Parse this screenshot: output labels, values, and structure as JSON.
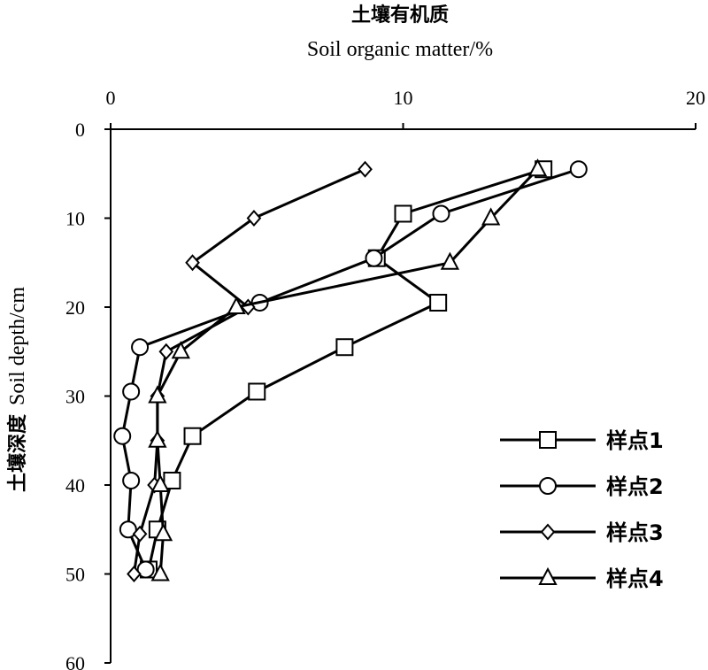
{
  "chart_data": {
    "type": "line",
    "title_cn": "土壤有机质",
    "xlabel": "Soil organic matter/%",
    "ylabel_cn": "土壤深度",
    "ylabel_en": "Soil depth/cm",
    "xlim": [
      0,
      20
    ],
    "ylim": [
      0,
      60
    ],
    "x_ticks": [
      0,
      10,
      20
    ],
    "y_ticks": [
      0,
      10,
      20,
      30,
      40,
      50,
      60
    ],
    "x_axis_position": "top",
    "y_axis_inverted": true,
    "grid": false,
    "legend_position": "bottom-right",
    "series": [
      {
        "name": "样点1",
        "marker": "square",
        "points": [
          {
            "x": 14.8,
            "y": 4.5
          },
          {
            "x": 10.0,
            "y": 9.5
          },
          {
            "x": 9.1,
            "y": 14.5
          },
          {
            "x": 11.2,
            "y": 19.5
          },
          {
            "x": 8.0,
            "y": 24.5
          },
          {
            "x": 5.0,
            "y": 29.5
          },
          {
            "x": 2.8,
            "y": 34.5
          },
          {
            "x": 2.1,
            "y": 39.5
          },
          {
            "x": 1.6,
            "y": 45.0
          },
          {
            "x": 1.3,
            "y": 49.5
          }
        ]
      },
      {
        "name": "样点2",
        "marker": "circle",
        "points": [
          {
            "x": 16.0,
            "y": 4.5
          },
          {
            "x": 11.3,
            "y": 9.5
          },
          {
            "x": 9.0,
            "y": 14.5
          },
          {
            "x": 5.1,
            "y": 19.5
          },
          {
            "x": 1.0,
            "y": 24.5
          },
          {
            "x": 0.7,
            "y": 29.5
          },
          {
            "x": 0.4,
            "y": 34.5
          },
          {
            "x": 0.7,
            "y": 39.5
          },
          {
            "x": 0.6,
            "y": 45.0
          },
          {
            "x": 1.2,
            "y": 49.5
          }
        ]
      },
      {
        "name": "样点3",
        "marker": "diamond",
        "points": [
          {
            "x": 8.7,
            "y": 4.5
          },
          {
            "x": 4.9,
            "y": 10.0
          },
          {
            "x": 2.8,
            "y": 15.0
          },
          {
            "x": 4.7,
            "y": 20.0
          },
          {
            "x": 1.9,
            "y": 25.0
          },
          {
            "x": 1.6,
            "y": 30.0
          },
          {
            "x": 1.6,
            "y": 35.0
          },
          {
            "x": 1.5,
            "y": 40.0
          },
          {
            "x": 1.0,
            "y": 45.5
          },
          {
            "x": 0.8,
            "y": 50.0
          }
        ]
      },
      {
        "name": "样点4",
        "marker": "triangle",
        "points": [
          {
            "x": 14.6,
            "y": 4.5
          },
          {
            "x": 13.0,
            "y": 10.0
          },
          {
            "x": 11.6,
            "y": 15.0
          },
          {
            "x": 4.3,
            "y": 20.0
          },
          {
            "x": 2.4,
            "y": 25.0
          },
          {
            "x": 1.6,
            "y": 30.0
          },
          {
            "x": 1.6,
            "y": 35.0
          },
          {
            "x": 1.7,
            "y": 40.0
          },
          {
            "x": 1.8,
            "y": 45.5
          },
          {
            "x": 1.7,
            "y": 50.0
          }
        ]
      }
    ]
  }
}
